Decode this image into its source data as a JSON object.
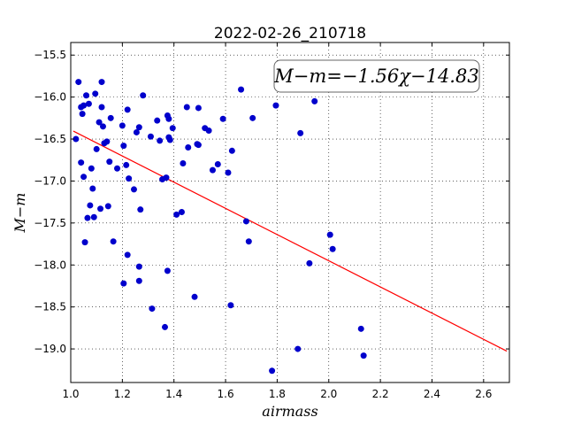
{
  "chart_data": {
    "type": "scatter",
    "title": "2022-02-26_210718",
    "xlabel": "airmass",
    "ylabel": "M−m",
    "xlim": [
      1.0,
      2.7
    ],
    "ylim": [
      -15.35,
      -19.4
    ],
    "y_inverted": true,
    "x_ticks": [
      1.0,
      1.2,
      1.4,
      1.6,
      1.8,
      2.0,
      2.2,
      2.4,
      2.6
    ],
    "x_tick_labels": [
      "1.0",
      "1.2",
      "1.4",
      "1.6",
      "1.8",
      "2.0",
      "2.2",
      "2.4",
      "2.6"
    ],
    "y_ticks": [
      -15.5,
      -16.0,
      -16.5,
      -17.0,
      -17.5,
      -18.0,
      -18.5,
      -19.0
    ],
    "y_tick_labels": [
      "−15.5",
      "−16.0",
      "−16.5",
      "−17.0",
      "−17.5",
      "−18.0",
      "−18.5",
      "−19.0"
    ],
    "grid": true,
    "annotation": "M−m=−1.56χ−14.83",
    "annotation_position": "top-right",
    "fit": {
      "slope": -1.56,
      "intercept": -14.83,
      "x_range": [
        1.01,
        2.69
      ],
      "color": "#ff0000"
    },
    "marker_color": "#0000cc",
    "points": [
      [
        1.02,
        -16.5
      ],
      [
        1.03,
        -15.82
      ],
      [
        1.04,
        -16.78
      ],
      [
        1.04,
        -16.12
      ],
      [
        1.045,
        -16.2
      ],
      [
        1.05,
        -16.1
      ],
      [
        1.05,
        -16.95
      ],
      [
        1.055,
        -17.73
      ],
      [
        1.06,
        -15.98
      ],
      [
        1.065,
        -17.44
      ],
      [
        1.07,
        -16.08
      ],
      [
        1.075,
        -17.29
      ],
      [
        1.08,
        -16.85
      ],
      [
        1.085,
        -17.09
      ],
      [
        1.09,
        -17.43
      ],
      [
        1.095,
        -15.96
      ],
      [
        1.1,
        -16.62
      ],
      [
        1.11,
        -16.3
      ],
      [
        1.115,
        -17.33
      ],
      [
        1.12,
        -15.82
      ],
      [
        1.12,
        -16.12
      ],
      [
        1.125,
        -16.35
      ],
      [
        1.13,
        -16.55
      ],
      [
        1.14,
        -16.53
      ],
      [
        1.145,
        -17.3
      ],
      [
        1.15,
        -16.77
      ],
      [
        1.155,
        -16.25
      ],
      [
        1.165,
        -17.72
      ],
      [
        1.18,
        -16.85
      ],
      [
        1.2,
        -16.34
      ],
      [
        1.205,
        -16.58
      ],
      [
        1.205,
        -18.22
      ],
      [
        1.215,
        -16.81
      ],
      [
        1.22,
        -17.88
      ],
      [
        1.22,
        -16.15
      ],
      [
        1.225,
        -16.97
      ],
      [
        1.245,
        -17.1
      ],
      [
        1.255,
        -16.42
      ],
      [
        1.265,
        -16.36
      ],
      [
        1.265,
        -18.02
      ],
      [
        1.265,
        -18.19
      ],
      [
        1.27,
        -17.34
      ],
      [
        1.28,
        -15.98
      ],
      [
        1.31,
        -16.47
      ],
      [
        1.315,
        -18.52
      ],
      [
        1.335,
        -16.28
      ],
      [
        1.345,
        -16.52
      ],
      [
        1.355,
        -16.98
      ],
      [
        1.365,
        -18.74
      ],
      [
        1.37,
        -16.96
      ],
      [
        1.375,
        -18.07
      ],
      [
        1.375,
        -16.22
      ],
      [
        1.38,
        -16.48
      ],
      [
        1.38,
        -16.26
      ],
      [
        1.385,
        -16.51
      ],
      [
        1.395,
        -16.37
      ],
      [
        1.41,
        -17.4
      ],
      [
        1.43,
        -17.37
      ],
      [
        1.435,
        -16.79
      ],
      [
        1.45,
        -16.12
      ],
      [
        1.455,
        -16.6
      ],
      [
        1.48,
        -18.38
      ],
      [
        1.49,
        -16.56
      ],
      [
        1.495,
        -16.57
      ],
      [
        1.495,
        -16.13
      ],
      [
        1.52,
        -16.37
      ],
      [
        1.535,
        -16.4
      ],
      [
        1.55,
        -16.87
      ],
      [
        1.57,
        -16.8
      ],
      [
        1.59,
        -16.26
      ],
      [
        1.61,
        -16.9
      ],
      [
        1.62,
        -18.48
      ],
      [
        1.625,
        -16.64
      ],
      [
        1.66,
        -15.91
      ],
      [
        1.68,
        -17.48
      ],
      [
        1.69,
        -17.72
      ],
      [
        1.705,
        -16.25
      ],
      [
        1.78,
        -19.26
      ],
      [
        1.795,
        -16.1
      ],
      [
        1.88,
        -19.0
      ],
      [
        1.89,
        -16.43
      ],
      [
        1.925,
        -17.98
      ],
      [
        1.945,
        -16.05
      ],
      [
        2.005,
        -17.64
      ],
      [
        2.015,
        -17.81
      ],
      [
        2.125,
        -18.76
      ],
      [
        2.135,
        -19.08
      ]
    ]
  }
}
